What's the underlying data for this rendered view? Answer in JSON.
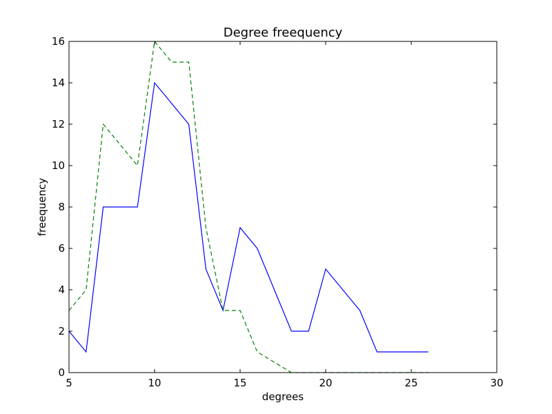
{
  "chart_data": {
    "type": "line",
    "title": "Degree freequency",
    "xlabel": "degrees",
    "ylabel": "freequency",
    "xlim": [
      5,
      30
    ],
    "ylim": [
      0,
      16
    ],
    "xticks": [
      5,
      10,
      15,
      20,
      25,
      30
    ],
    "yticks": [
      0,
      2,
      4,
      6,
      8,
      10,
      12,
      14,
      16
    ],
    "grid": false,
    "series": [
      {
        "color": "#0000ff",
        "linestyle": "solid",
        "x": [
          5,
          6,
          7,
          8,
          9,
          10,
          11,
          12,
          13,
          14,
          15,
          16,
          17,
          18,
          19,
          20,
          21,
          22,
          23,
          24,
          25,
          26
        ],
        "y": [
          2,
          1,
          8,
          8,
          8,
          14,
          13,
          12,
          5,
          3,
          7,
          6,
          4,
          2,
          2,
          5,
          4,
          3,
          1,
          1,
          1,
          1
        ]
      },
      {
        "color": "#008000",
        "linestyle": "dashed",
        "x": [
          5,
          6,
          7,
          8,
          9,
          10,
          11,
          12,
          13,
          14,
          15,
          16,
          17,
          18,
          19,
          20,
          21,
          22,
          23,
          24,
          25,
          26
        ],
        "y": [
          3,
          4,
          12,
          11,
          10,
          16,
          15,
          15,
          7,
          3,
          3,
          1,
          0.5,
          0,
          0,
          0,
          0,
          0,
          0,
          0,
          0,
          0
        ]
      }
    ]
  }
}
